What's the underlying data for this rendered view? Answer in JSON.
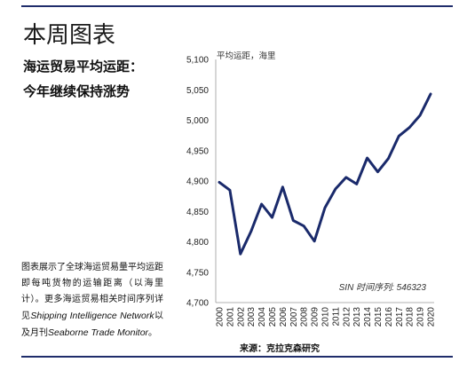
{
  "header": {
    "title": "本周图表",
    "subtitle_line1": "海运贸易平均运距：",
    "subtitle_line2": "今年继续保持涨势"
  },
  "note": {
    "text_1": "图表展示了全球海运贸易量平均运距即每吨货物的运输距离（以海里计）。更多海运贸易相关时间序列详见",
    "italic_1": "Shipping Intelligence Network",
    "text_2": "以及月刊",
    "italic_2": "Seaborne Trade Monitor",
    "text_3": "。"
  },
  "source": "来源：克拉克森研究",
  "colors": {
    "line": "#1a2a6b",
    "rule": "#1f2d6b",
    "axis": "#999999"
  },
  "chart_data": {
    "type": "line",
    "unit_label": "平均运距，海里",
    "series_label": "SIN 时间序列: 546323",
    "categories": [
      "2000",
      "2001",
      "2002",
      "2003",
      "2004",
      "2005",
      "2006",
      "2007",
      "2008",
      "2009",
      "2010",
      "2011",
      "2012",
      "2013",
      "2014",
      "2015",
      "2016",
      "2017",
      "2018",
      "2019",
      "2020"
    ],
    "values": [
      4898,
      4885,
      4780,
      4817,
      4862,
      4840,
      4890,
      4835,
      4826,
      4801,
      4856,
      4887,
      4906,
      4895,
      4938,
      4915,
      4937,
      4974,
      4988,
      5008,
      5043
    ],
    "ylim": [
      4700,
      5100
    ],
    "yticks": [
      "4,700",
      "4,750",
      "4,800",
      "4,850",
      "4,900",
      "4,950",
      "5,000",
      "5,050",
      "5,100"
    ],
    "ytick_values": [
      4700,
      4750,
      4800,
      4850,
      4900,
      4950,
      5000,
      5050,
      5100
    ]
  }
}
